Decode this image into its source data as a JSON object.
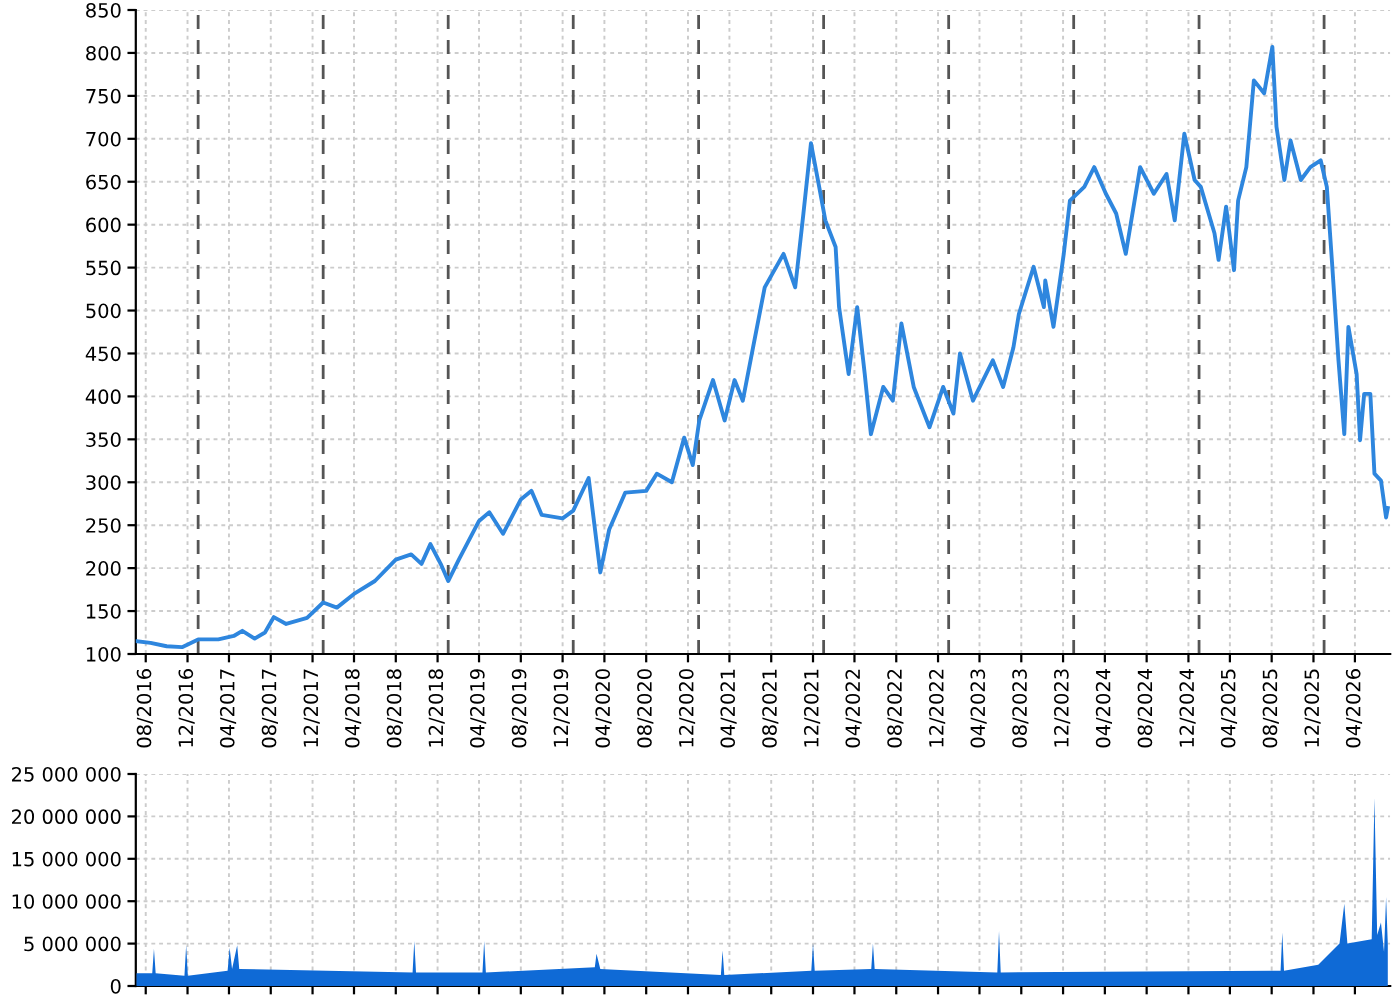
{
  "chart_data": [
    {
      "type": "line",
      "color": "#2e86de",
      "xlim": [
        "2016-07-03",
        "2026-07-13"
      ],
      "ylim": [
        100,
        850
      ],
      "yticks": [
        100,
        150,
        200,
        250,
        300,
        350,
        400,
        450,
        500,
        550,
        600,
        650,
        700,
        750,
        800,
        850
      ],
      "xticks": [
        {
          "value": "2016-08-01",
          "label": "08/2016"
        },
        {
          "value": "2016-12-01",
          "label": "12/2016"
        },
        {
          "value": "2017-04-01",
          "label": "04/2017"
        },
        {
          "value": "2017-08-01",
          "label": "08/2017"
        },
        {
          "value": "2017-12-01",
          "label": "12/2017"
        },
        {
          "value": "2018-04-01",
          "label": "04/2018"
        },
        {
          "value": "2018-08-01",
          "label": "08/2018"
        },
        {
          "value": "2018-12-01",
          "label": "12/2018"
        },
        {
          "value": "2019-04-01",
          "label": "04/2019"
        },
        {
          "value": "2019-08-01",
          "label": "08/2019"
        },
        {
          "value": "2019-12-01",
          "label": "12/2019"
        },
        {
          "value": "2020-04-01",
          "label": "04/2020"
        },
        {
          "value": "2020-08-01",
          "label": "08/2020"
        },
        {
          "value": "2020-12-01",
          "label": "12/2020"
        },
        {
          "value": "2021-04-01",
          "label": "04/2021"
        },
        {
          "value": "2021-08-01",
          "label": "08/2021"
        },
        {
          "value": "2021-12-01",
          "label": "12/2021"
        },
        {
          "value": "2022-04-01",
          "label": "04/2022"
        },
        {
          "value": "2022-08-01",
          "label": "08/2022"
        },
        {
          "value": "2022-12-01",
          "label": "12/2022"
        },
        {
          "value": "2023-04-01",
          "label": "04/2023"
        },
        {
          "value": "2023-08-01",
          "label": "08/2023"
        },
        {
          "value": "2023-12-01",
          "label": "12/2023"
        },
        {
          "value": "2024-04-01",
          "label": "04/2024"
        },
        {
          "value": "2024-08-01",
          "label": "08/2024"
        },
        {
          "value": "2024-12-01",
          "label": "12/2024"
        },
        {
          "value": "2025-04-01",
          "label": "04/2025"
        },
        {
          "value": "2025-08-01",
          "label": "08/2025"
        },
        {
          "value": "2025-12-01",
          "label": "12/2025"
        },
        {
          "value": "2026-04-01",
          "label": "04/2026"
        }
      ],
      "grid": true,
      "ref_lines": [
        {
          "axis": "x",
          "value": "2017-01-01",
          "color": "#555555",
          "line_style": "dashed"
        },
        {
          "axis": "x",
          "value": "2018-01-01",
          "color": "#555555",
          "line_style": "dashed"
        },
        {
          "axis": "x",
          "value": "2019-01-01",
          "color": "#555555",
          "line_style": "dashed"
        },
        {
          "axis": "x",
          "value": "2020-01-01",
          "color": "#555555",
          "line_style": "dashed"
        },
        {
          "axis": "x",
          "value": "2021-01-01",
          "color": "#555555",
          "line_style": "dashed"
        },
        {
          "axis": "x",
          "value": "2022-01-01",
          "color": "#555555",
          "line_style": "dashed"
        },
        {
          "axis": "x",
          "value": "2023-01-01",
          "color": "#555555",
          "line_style": "dashed"
        },
        {
          "axis": "x",
          "value": "2024-01-01",
          "color": "#555555",
          "line_style": "dashed"
        },
        {
          "axis": "x",
          "value": "2025-01-01",
          "color": "#555555",
          "line_style": "dashed"
        },
        {
          "axis": "x",
          "value": "2026-01-01",
          "color": "#555555",
          "line_style": "dashed"
        }
      ],
      "x": [
        "2016-07-05",
        "2016-08-15",
        "2016-10-01",
        "2016-11-15",
        "2017-01-01",
        "2017-03-01",
        "2017-04-15",
        "2017-05-10",
        "2017-06-15",
        "2017-07-15",
        "2017-08-10",
        "2017-09-15",
        "2017-11-15",
        "2018-01-01",
        "2018-02-10",
        "2018-04-01",
        "2018-06-01",
        "2018-08-01",
        "2018-09-15",
        "2018-10-15",
        "2018-11-10",
        "2018-12-10",
        "2019-01-01",
        "2019-02-01",
        "2019-04-01",
        "2019-05-01",
        "2019-06-10",
        "2019-08-01",
        "2019-09-01",
        "2019-10-01",
        "2019-12-01",
        "2020-01-01",
        "2020-02-15",
        "2020-03-20",
        "2020-04-15",
        "2020-06-01",
        "2020-08-01",
        "2020-09-01",
        "2020-10-15",
        "2020-11-20",
        "2020-12-15",
        "2021-01-03",
        "2021-02-12",
        "2021-03-18",
        "2021-04-16",
        "2021-05-10",
        "2021-06-09",
        "2021-07-13",
        "2021-09-06",
        "2021-10-10",
        "2021-11-03",
        "2021-11-25",
        "2021-12-19",
        "2022-01-06",
        "2022-02-05",
        "2022-02-15",
        "2022-03-15",
        "2022-04-09",
        "2022-05-01",
        "2022-05-19",
        "2022-06-24",
        "2022-07-22",
        "2022-08-16",
        "2022-09-21",
        "2022-11-06",
        "2022-12-16",
        "2023-01-15",
        "2023-02-03",
        "2023-03-13",
        "2023-05-10",
        "2023-06-09",
        "2023-07-09",
        "2023-07-25",
        "2023-09-06",
        "2023-10-06",
        "2023-10-10",
        "2023-11-03",
        "2023-12-03",
        "2023-12-21",
        "2024-02-01",
        "2024-03-01",
        "2024-04-04",
        "2024-05-04",
        "2024-06-01",
        "2024-07-13",
        "2024-08-22",
        "2024-09-28",
        "2024-10-22",
        "2024-11-19",
        "2024-12-19",
        "2025-01-06",
        "2025-02-15",
        "2025-02-27",
        "2025-03-21",
        "2025-04-13",
        "2025-04-25",
        "2025-05-19",
        "2025-06-10",
        "2025-07-10",
        "2025-08-03",
        "2025-08-15",
        "2025-09-07",
        "2025-09-25",
        "2025-10-25",
        "2025-11-22",
        "2025-12-22",
        "2026-01-09",
        "2026-01-25",
        "2026-02-12",
        "2026-03-01",
        "2026-03-13",
        "2026-04-06",
        "2026-04-16",
        "2026-04-28",
        "2026-05-16",
        "2026-05-28",
        "2026-06-16",
        "2026-07-01",
        "2026-07-06"
      ],
      "values": [
        115,
        113,
        109,
        108,
        117,
        117,
        121,
        127,
        118,
        125,
        143,
        135,
        142,
        160,
        154,
        170,
        185,
        210,
        216,
        205,
        228,
        205,
        185,
        210,
        255,
        265,
        240,
        280,
        290,
        262,
        258,
        267,
        305,
        195,
        245,
        288,
        290,
        310,
        300,
        352,
        320,
        372,
        419,
        372,
        419,
        395,
        457,
        527,
        566,
        527,
        613,
        695,
        644,
        605,
        574,
        504,
        426,
        504,
        426,
        356,
        411,
        395,
        485,
        411,
        364,
        411,
        380,
        450,
        395,
        442,
        411,
        457,
        496,
        551,
        504,
        535,
        481,
        566,
        628,
        644,
        667,
        636,
        613,
        566,
        667,
        636,
        659,
        605,
        706,
        652,
        644,
        590,
        559,
        621,
        547,
        628,
        667,
        768,
        753,
        807,
        714,
        652,
        698,
        652,
        667,
        675,
        644,
        551,
        442,
        356,
        481,
        426,
        349,
        403,
        403,
        310,
        302,
        259,
        270
      ]
    },
    {
      "type": "area",
      "color": "#0f6ad6",
      "xlim": [
        "2016-07-03",
        "2026-07-13"
      ],
      "ylim": [
        0,
        25000000
      ],
      "yticks": [
        0,
        {
          "value": 5000000,
          "label": "5 000 000"
        },
        {
          "value": 10000000,
          "label": "10 000 000"
        },
        {
          "value": 15000000,
          "label": "15 000 000"
        },
        {
          "value": 20000000,
          "label": "20 000 000"
        },
        {
          "value": 25000000,
          "label": "25 000 000"
        }
      ],
      "xticks": [
        {
          "value": "2016-08-01",
          "label": null
        },
        {
          "value": "2016-12-01",
          "label": null
        },
        {
          "value": "2017-04-01",
          "label": null
        },
        {
          "value": "2017-08-01",
          "label": null
        },
        {
          "value": "2017-12-01",
          "label": null
        },
        {
          "value": "2018-04-01",
          "label": null
        },
        {
          "value": "2018-08-01",
          "label": null
        },
        {
          "value": "2018-12-01",
          "label": null
        },
        {
          "value": "2019-04-01",
          "label": null
        },
        {
          "value": "2019-08-01",
          "label": null
        },
        {
          "value": "2019-12-01",
          "label": null
        },
        {
          "value": "2020-04-01",
          "label": null
        },
        {
          "value": "2020-08-01",
          "label": null
        },
        {
          "value": "2020-12-01",
          "label": null
        },
        {
          "value": "2021-04-01",
          "label": null
        },
        {
          "value": "2021-08-01",
          "label": null
        },
        {
          "value": "2021-12-01",
          "label": null
        },
        {
          "value": "2022-04-01",
          "label": null
        },
        {
          "value": "2022-08-01",
          "label": null
        },
        {
          "value": "2022-12-01",
          "label": null
        },
        {
          "value": "2023-04-01",
          "label": null
        },
        {
          "value": "2023-08-01",
          "label": null
        },
        {
          "value": "2023-12-01",
          "label": null
        },
        {
          "value": "2024-04-01",
          "label": null
        },
        {
          "value": "2024-08-01",
          "label": null
        },
        {
          "value": "2024-12-01",
          "label": null
        },
        {
          "value": "2025-04-01",
          "label": null
        },
        {
          "value": "2025-08-01",
          "label": null
        },
        {
          "value": "2025-12-01",
          "label": null
        },
        {
          "value": "2026-04-01",
          "label": null
        }
      ],
      "grid": true,
      "tick_labels": "y",
      "x": [
        "2016-07-05",
        "2016-08-20",
        "2016-08-25",
        "2016-08-30",
        "2016-11-22",
        "2016-11-27",
        "2016-12-02",
        "2017-03-28",
        "2017-04-03",
        "2017-04-10",
        "2017-04-25",
        "2017-05-01",
        "2018-09-19",
        "2018-09-24",
        "2018-09-29",
        "2019-04-11",
        "2019-04-16",
        "2019-04-21",
        "2020-03-04",
        "2020-03-09",
        "2020-03-20",
        "2021-03-07",
        "2021-03-12",
        "2021-03-17",
        "2021-11-26",
        "2021-12-01",
        "2021-12-06",
        "2022-05-20",
        "2022-05-25",
        "2022-05-30",
        "2023-05-23",
        "2023-05-28",
        "2023-06-02",
        "2025-08-27",
        "2025-09-01",
        "2025-09-06",
        "2025-12-15",
        "2026-02-15",
        "2026-03-01",
        "2026-03-10",
        "2026-05-20",
        "2026-05-28",
        "2026-06-05",
        "2026-06-16",
        "2026-06-25",
        "2026-07-01",
        "2026-07-06"
      ],
      "values": [
        1500000,
        1500000,
        4400000,
        1500000,
        1200000,
        4800000,
        1200000,
        1800000,
        4500000,
        2000000,
        4800000,
        2000000,
        1600000,
        5300000,
        1600000,
        1600000,
        5300000,
        1600000,
        2200000,
        3800000,
        2000000,
        1300000,
        4200000,
        1300000,
        1800000,
        5000000,
        1800000,
        2000000,
        5000000,
        2000000,
        1600000,
        6500000,
        1600000,
        1800000,
        6300000,
        1800000,
        2500000,
        5000000,
        9700000,
        5000000,
        5500000,
        22200000,
        6000000,
        7500000,
        4000000,
        10500000,
        5000000
      ]
    }
  ]
}
